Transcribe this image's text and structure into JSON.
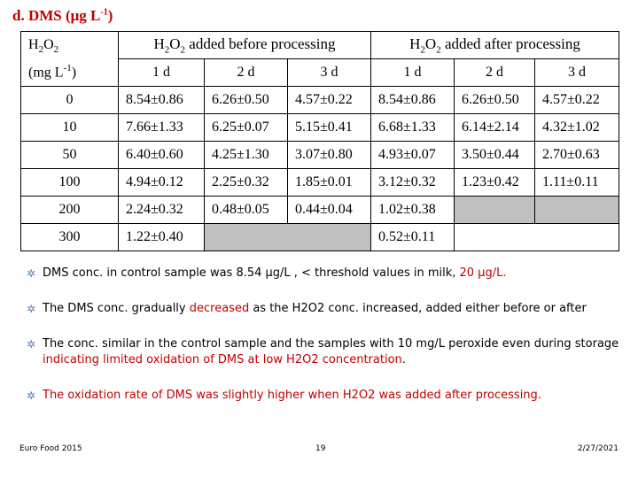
{
  "heading": {
    "prefix": "d. DMS (",
    "unit": "μg L",
    "exp": "-1",
    "suffix": ")"
  },
  "table": {
    "corner": {
      "line1_a": "H",
      "line1_sub1": "2",
      "line1_b": "O",
      "line1_sub2": "2",
      "line2_a": "(mg L",
      "line2_exp": "-1",
      "line2_b": ")"
    },
    "group_before": {
      "a": "H",
      "sub1": "2",
      "b": "O",
      "sub2": "2",
      "rest": " added before processing"
    },
    "group_after": {
      "a": "H",
      "sub1": "2",
      "b": "O",
      "sub2": "2",
      "rest": " added after processing"
    },
    "days": [
      "1 d",
      "2 d",
      "3 d",
      "1 d",
      "2 d",
      "3 d"
    ],
    "rows": [
      {
        "conc": "0",
        "cells": [
          "8.54±0.86",
          "6.26±0.50",
          "4.57±0.22",
          "8.54±0.86",
          "6.26±0.50",
          "4.57±0.22"
        ]
      },
      {
        "conc": "10",
        "cells": [
          "7.66±1.33",
          "6.25±0.07",
          "5.15±0.41",
          "6.68±1.33",
          "6.14±2.14",
          "4.32±1.02"
        ]
      },
      {
        "conc": "50",
        "cells": [
          "6.40±0.60",
          "4.25±1.30",
          "3.07±0.80",
          "4.93±0.07",
          "3.50±0.44",
          "2.70±0.63"
        ]
      },
      {
        "conc": "100",
        "cells": [
          "4.94±0.12",
          "2.25±0.32",
          "1.85±0.01",
          "3.12±0.32",
          "1.23±0.42",
          "1.11±0.11"
        ]
      },
      {
        "conc": "200",
        "cells": [
          "2.24±0.32",
          "0.48±0.05",
          "0.44±0.04",
          "1.02±0.38",
          "",
          ""
        ]
      },
      {
        "conc": "300",
        "cells": [
          "1.22±0.40",
          "",
          "",
          "0.52±0.11",
          "",
          ""
        ]
      }
    ]
  },
  "bullets": {
    "b1": {
      "t1": "DMS  conc. in control sample was 8.54 μg/L , <  threshold values in milk, ",
      "t2": "20 μg/L."
    },
    "b2": {
      "t1": "The DMS conc. gradually ",
      "t2": "decreased",
      "t3": " as the H2O2 conc. increased, added either before or after"
    },
    "b3": {
      "t1": "The conc.  similar in the control sample and the samples with 10 mg/L peroxide even during storage ",
      "t2": "indicating limited oxidation of DMS at low H2O2 concentration",
      "t3": "."
    },
    "b4": {
      "t1": "The oxidation rate of DMS was slightly higher when H2O2 was added  after processing."
    }
  },
  "footer": {
    "left": "Euro Food 2015",
    "center": "19",
    "right": "2/27/2021"
  },
  "colors": {
    "accent_red": "#c00000",
    "bullet_blue": "#5b7fb5",
    "grey_cell": "#c0c0c0"
  }
}
